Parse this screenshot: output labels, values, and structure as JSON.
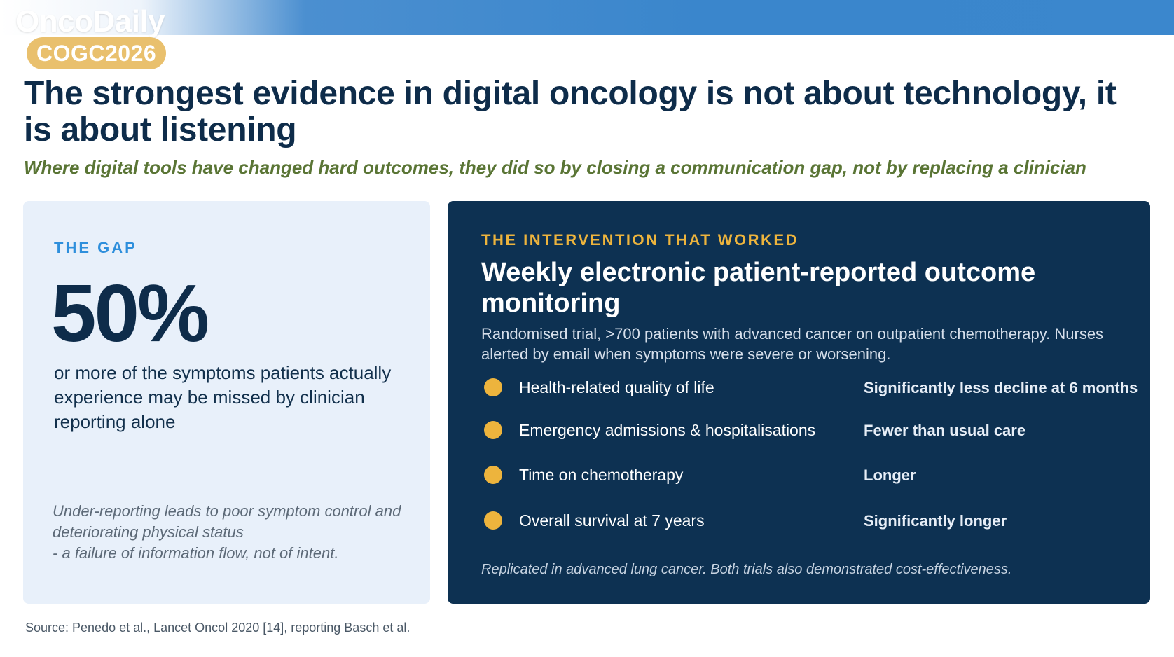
{
  "header": {
    "brand": "OncoDaily",
    "badge": "COGC2026"
  },
  "slide": {
    "title": "The strongest evidence in digital oncology is not about technology, it is about listening",
    "subtitle": "Where digital tools have changed hard outcomes, they did so by closing a communication gap, not by replacing a clinician"
  },
  "gap": {
    "label": "THE GAP",
    "stat": "50%",
    "description": "or more of the symptoms patients actually experience may be missed by clinician reporting alone",
    "note_line1": "Under-reporting leads to poor symptom control and deteriorating physical status",
    "note_line2": "- a failure of information flow, not of intent."
  },
  "intervention": {
    "label": "THE INTERVENTION THAT WORKED",
    "title": "Weekly electronic patient-reported outcome monitoring",
    "description": "Randomised trial, >700 patients with advanced cancer on outpatient chemotherapy. Nurses alerted by email when symptoms were severe or worsening.",
    "outcomes": [
      {
        "label": "Health-related quality of life",
        "result": "Significantly less decline at 6 months"
      },
      {
        "label": "Emergency admissions & hospitalisations",
        "result": "Fewer than usual care"
      },
      {
        "label": "Time on chemotherapy",
        "result": "Longer"
      },
      {
        "label": "Overall survival at 7 years",
        "result": "Significantly longer"
      }
    ],
    "footnote": "Replicated in advanced lung cancer. Both trials also demonstrated cost-effectiveness."
  },
  "source": "Source: Penedo et al., Lancet Oncol 2020 [14], reporting Basch et al.",
  "colors": {
    "navy": "#0d3152",
    "accent_gold": "#edb43d",
    "accent_blue": "#2e8fdc",
    "subtitle_green": "#5a7535",
    "badge": "#e9c06d"
  }
}
